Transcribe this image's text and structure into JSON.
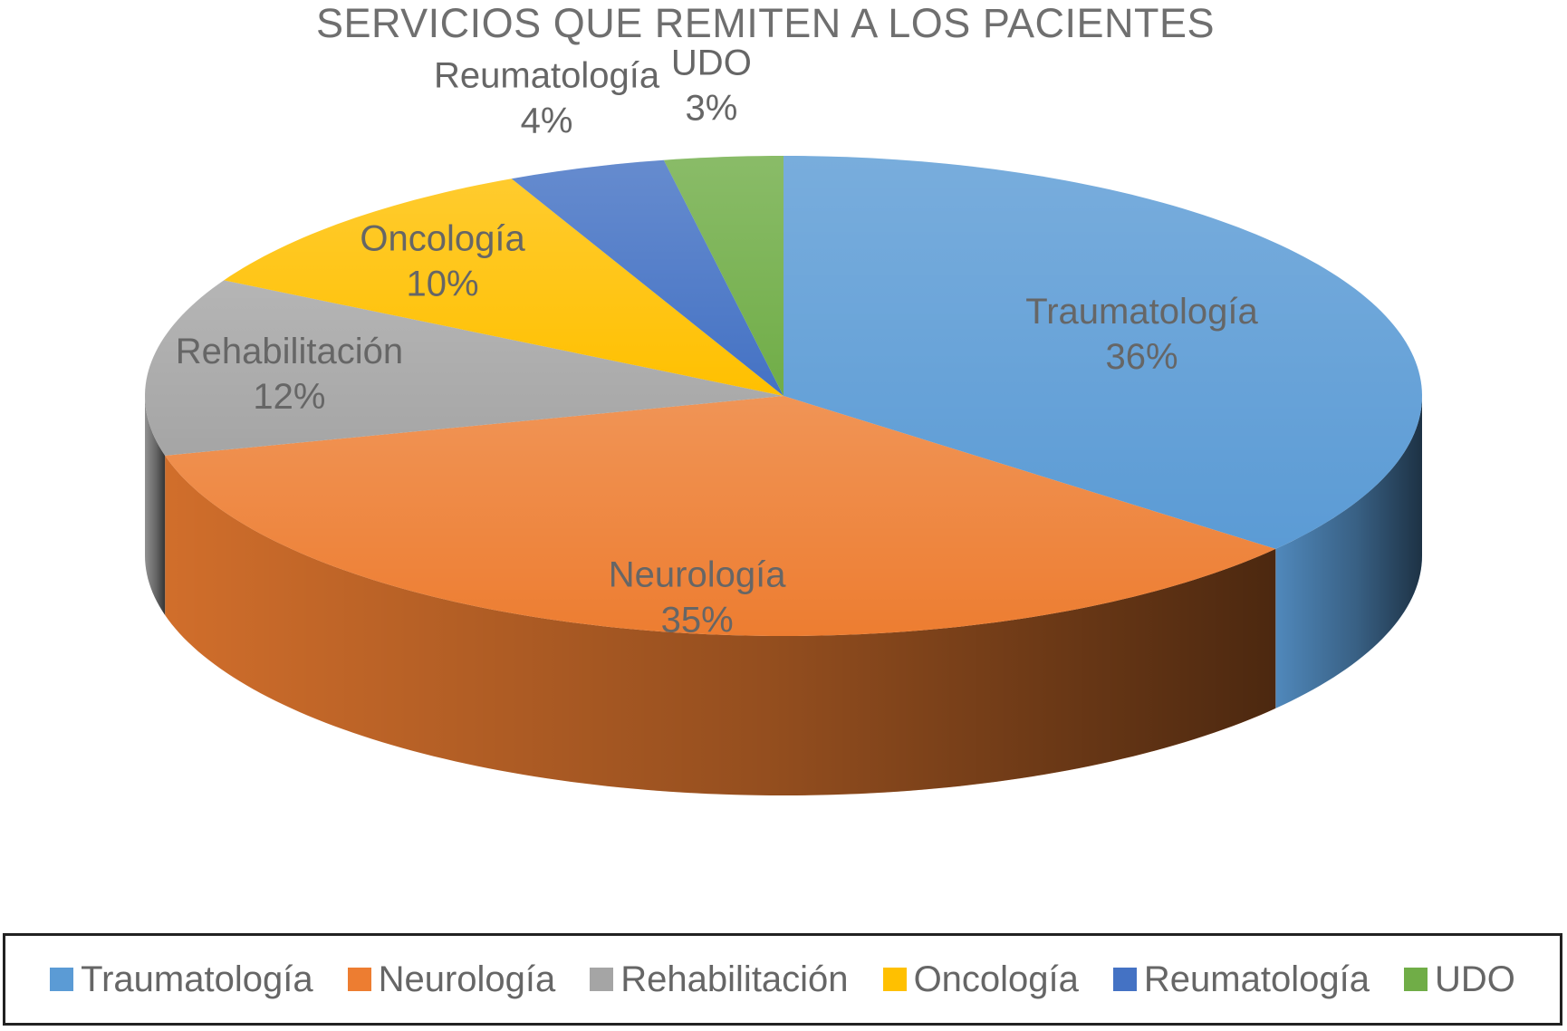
{
  "chart_data": {
    "type": "pie",
    "title": "SERVICIOS QUE REMITEN A LOS PACIENTES",
    "slices": [
      {
        "label": "Traumatología",
        "value": 36,
        "display": "36%",
        "color": "#5b9bd5"
      },
      {
        "label": "Neurología",
        "value": 35,
        "display": "35%",
        "color": "#ed7d31"
      },
      {
        "label": "Rehabilitación",
        "value": 12,
        "display": "12%",
        "color": "#a5a5a5"
      },
      {
        "label": "Oncología",
        "value": 10,
        "display": "10%",
        "color": "#ffc000"
      },
      {
        "label": "Reumatología",
        "value": 4,
        "display": "4%",
        "color": "#4472c4"
      },
      {
        "label": "UDO",
        "value": 3,
        "display": "3%",
        "color": "#70ad47"
      }
    ],
    "legend_position": "bottom"
  }
}
